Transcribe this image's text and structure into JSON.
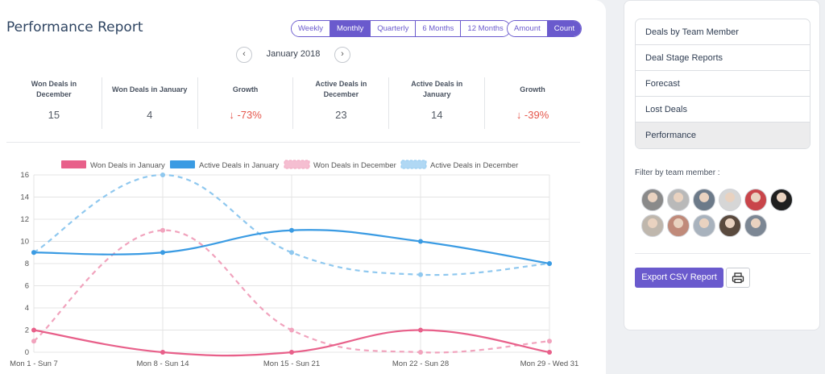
{
  "header": {
    "title": "Performance Report",
    "period_tabs": [
      {
        "label": "Weekly",
        "active": false
      },
      {
        "label": "Monthly",
        "active": true
      },
      {
        "label": "Quarterly",
        "active": false
      },
      {
        "label": "6 Months",
        "active": false
      },
      {
        "label": "12 Months",
        "active": false
      }
    ],
    "metric_tabs": [
      {
        "label": "Amount",
        "active": false
      },
      {
        "label": "Count",
        "active": true
      }
    ],
    "period_label": "January 2018",
    "prev_icon": "chevron-left-icon",
    "next_icon": "chevron-right-icon"
  },
  "stats": [
    {
      "label": "Won Deals in December",
      "value": "15",
      "negative": false
    },
    {
      "label": "Won Deals in January",
      "value": "4",
      "negative": false
    },
    {
      "label": "Growth",
      "value": "↓ -73%",
      "negative": true
    },
    {
      "label": "Active Deals in December",
      "value": "23",
      "negative": false
    },
    {
      "label": "Active Deals in January",
      "value": "14",
      "negative": false
    },
    {
      "label": "Growth",
      "value": "↓ -39%",
      "negative": true
    }
  ],
  "chart_data": {
    "type": "line",
    "categories": [
      "Mon  1 - Sun  7",
      "Mon  8 - Sun 14",
      "Mon 15 - Sun 21",
      "Mon 22 - Sun 28",
      "Mon 29 - Wed 31"
    ],
    "ylim": [
      0,
      16
    ],
    "yticks": [
      0,
      2,
      4,
      6,
      8,
      10,
      12,
      14,
      16
    ],
    "grid": true,
    "legend_position": "top",
    "series": [
      {
        "name": "Won Deals in January",
        "values": [
          2,
          0,
          0,
          2,
          0
        ],
        "color": "#e8608a",
        "dashed": false
      },
      {
        "name": "Active Deals in January",
        "values": [
          9,
          9,
          11,
          10,
          8
        ],
        "color": "#3a9be3",
        "dashed": false
      },
      {
        "name": "Won Deals in December",
        "values": [
          1,
          11,
          2,
          0,
          1
        ],
        "color": "#f1a3bd",
        "dashed": true
      },
      {
        "name": "Active Deals in December",
        "values": [
          9,
          16,
          9,
          7,
          8
        ],
        "color": "#8fc8ef",
        "dashed": true
      }
    ]
  },
  "sidebar": {
    "reports": [
      {
        "label": "Deals by Team Member",
        "active": false
      },
      {
        "label": "Deal Stage Reports",
        "active": false
      },
      {
        "label": "Forecast",
        "active": false
      },
      {
        "label": "Lost Deals",
        "active": false
      },
      {
        "label": "Performance",
        "active": true
      }
    ],
    "filter_label": "Filter by team member :",
    "avatars": [
      {
        "color": "#8a8a8a"
      },
      {
        "color": "#b9b9b9"
      },
      {
        "color": "#6c7a89"
      },
      {
        "color": "#d6d6d6"
      },
      {
        "color": "#c9454a"
      },
      {
        "color": "#1f1f1f"
      },
      {
        "color": "#bfb7ad"
      },
      {
        "color": "#c08a7a"
      },
      {
        "color": "#a8b2bd"
      },
      {
        "color": "#5a4a3e"
      },
      {
        "color": "#7c8794"
      }
    ],
    "export_label": "Export CSV Report",
    "print_icon": "printer-icon"
  }
}
